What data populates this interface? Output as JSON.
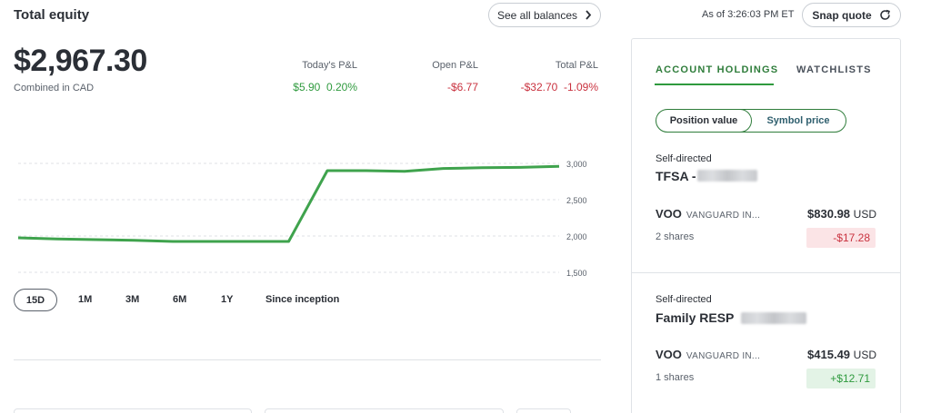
{
  "header": {
    "title": "Total equity",
    "see_all_label": "See all balances",
    "as_of": "As of 3:26:03 PM ET",
    "snap_label": "Snap quote"
  },
  "equity": {
    "value": "$2,967.30",
    "currency_note": "Combined in CAD"
  },
  "pnl": {
    "today_label": "Today's P&L",
    "today_value": "$5.90",
    "today_pct": "0.20%",
    "open_label": "Open P&L",
    "open_value": "-$6.77",
    "total_label": "Total P&L",
    "total_value": "-$32.70",
    "total_pct": "-1.09%"
  },
  "chart_data": {
    "type": "line",
    "x": [
      1,
      2,
      3,
      4,
      5,
      6,
      7,
      8,
      9,
      10,
      11,
      12,
      13,
      14,
      15
    ],
    "series": [
      {
        "values": [
          1975,
          1960,
          1950,
          1940,
          1925,
          1925,
          1925,
          1925,
          2900,
          2900,
          2890,
          2930,
          2940,
          2945,
          2960
        ]
      }
    ],
    "yticks": [
      "3,000",
      "2,500",
      "2,000",
      "1,500"
    ],
    "ytick_values": [
      3000,
      2500,
      2000,
      1500
    ],
    "ylim": [
      1500,
      3000
    ],
    "grid": true,
    "line_color": "#3fa34d"
  },
  "ranges": [
    "15D",
    "1M",
    "3M",
    "6M",
    "1Y",
    "Since inception"
  ],
  "panel": {
    "tab_holdings": "ACCOUNT HOLDINGS",
    "tab_watchlists": "WATCHLISTS",
    "seg_position": "Position value",
    "seg_symbol": "Symbol price",
    "accounts": [
      {
        "type": "Self-directed",
        "name": "TFSA -",
        "symbol": "VOO",
        "desc": "VANGUARD IN...",
        "price": "$830.98",
        "ccy": "USD",
        "shares": "2 shares",
        "change": "-$17.28"
      },
      {
        "type": "Self-directed",
        "name": "Family RESP",
        "symbol": "VOO",
        "desc": "VANGUARD IN...",
        "price": "$415.49",
        "ccy": "USD",
        "shares": "1 shares",
        "change": "+$12.71"
      }
    ]
  }
}
